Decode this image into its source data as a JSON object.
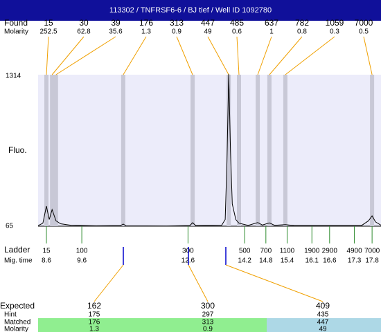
{
  "title": "113302 / TNFRSF6-6 / BJ tief / Well ID 1092780",
  "found": {
    "label": "Found",
    "molarity_label": "Molarity",
    "sizes": [
      15,
      30,
      39,
      176,
      313,
      447,
      485,
      637,
      782,
      1059,
      7000
    ],
    "molarity": [
      252.5,
      62.8,
      35.6,
      1.3,
      0.9,
      49,
      0.6,
      1,
      0.8,
      0.3,
      0.5
    ],
    "peak_times": [
      8.6,
      8.76,
      8.87,
      10.77,
      12.73,
      13.75,
      14.04,
      14.57,
      14.9,
      15.35,
      17.8
    ]
  },
  "y_axis": {
    "label": "Fluo.",
    "ticks": [
      65,
      1314
    ]
  },
  "ladder": {
    "label": "Ladder",
    "mig_label": "Mig. time",
    "sizes": [
      15,
      100,
      300,
      500,
      700,
      1100,
      1900,
      2900,
      4900,
      7000
    ],
    "mig_times": [
      8.6,
      9.6,
      12.6,
      14.2,
      14.8,
      15.4,
      16.1,
      16.6,
      17.3,
      17.8
    ]
  },
  "trace": {
    "x": [
      8.37,
      8.5,
      8.6,
      8.68,
      8.76,
      8.87,
      9.0,
      9.3,
      10.0,
      10.7,
      10.77,
      10.85,
      12.0,
      12.65,
      12.73,
      12.82,
      13.55,
      13.65,
      13.7,
      13.75,
      13.8,
      13.85,
      13.95,
      14.04,
      14.3,
      14.57,
      14.7,
      14.9,
      15.05,
      15.35,
      15.6,
      17.5,
      17.7,
      17.8,
      17.9,
      18.06
    ],
    "values": [
      70,
      90,
      232,
      120,
      203,
      110,
      85,
      72,
      68,
      70,
      82,
      68,
      67,
      70,
      94,
      70,
      72,
      120,
      600,
      1330,
      700,
      250,
      120,
      90,
      72,
      95,
      75,
      92,
      72,
      78,
      70,
      70,
      110,
      151,
      100,
      72
    ]
  },
  "expected": {
    "row_labels": [
      "Expected",
      "Hint",
      "Matched",
      "Molarity"
    ],
    "columns": [
      {
        "expected": 162,
        "hint": 175,
        "matched": 176,
        "molarity": 1.3
      },
      {
        "expected": 300,
        "hint": 297,
        "matched": 313,
        "molarity": 0.9
      },
      {
        "expected": 409,
        "hint": 435,
        "matched": 447,
        "molarity": 49
      }
    ]
  }
}
